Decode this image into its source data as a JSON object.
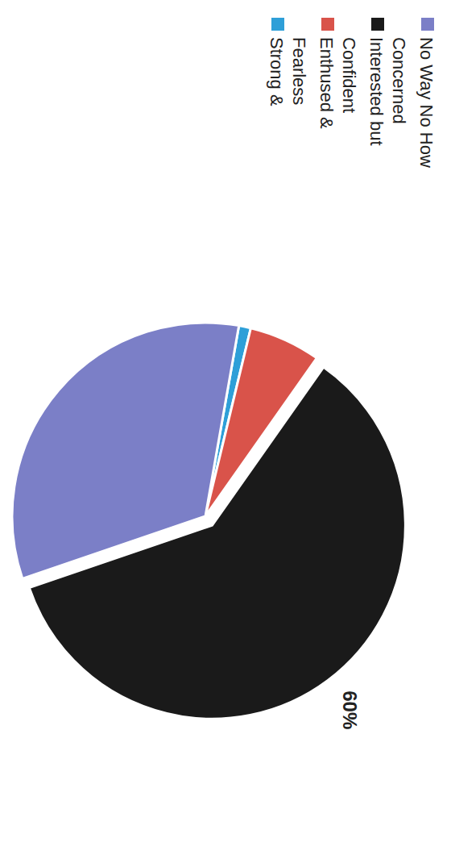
{
  "chart_data": {
    "type": "pie",
    "categories": [
      "Strong & Fearless",
      "Enthused & Confident",
      "Interested but Concerned",
      "No Way No How"
    ],
    "values": [
      1,
      6,
      60,
      33
    ],
    "value_labels": [
      null,
      null,
      "60%",
      null
    ],
    "colors": [
      "#2e9fd8",
      "#d9534a",
      "#1a1a1a",
      "#7b7fc7"
    ],
    "legend": "upper right"
  }
}
